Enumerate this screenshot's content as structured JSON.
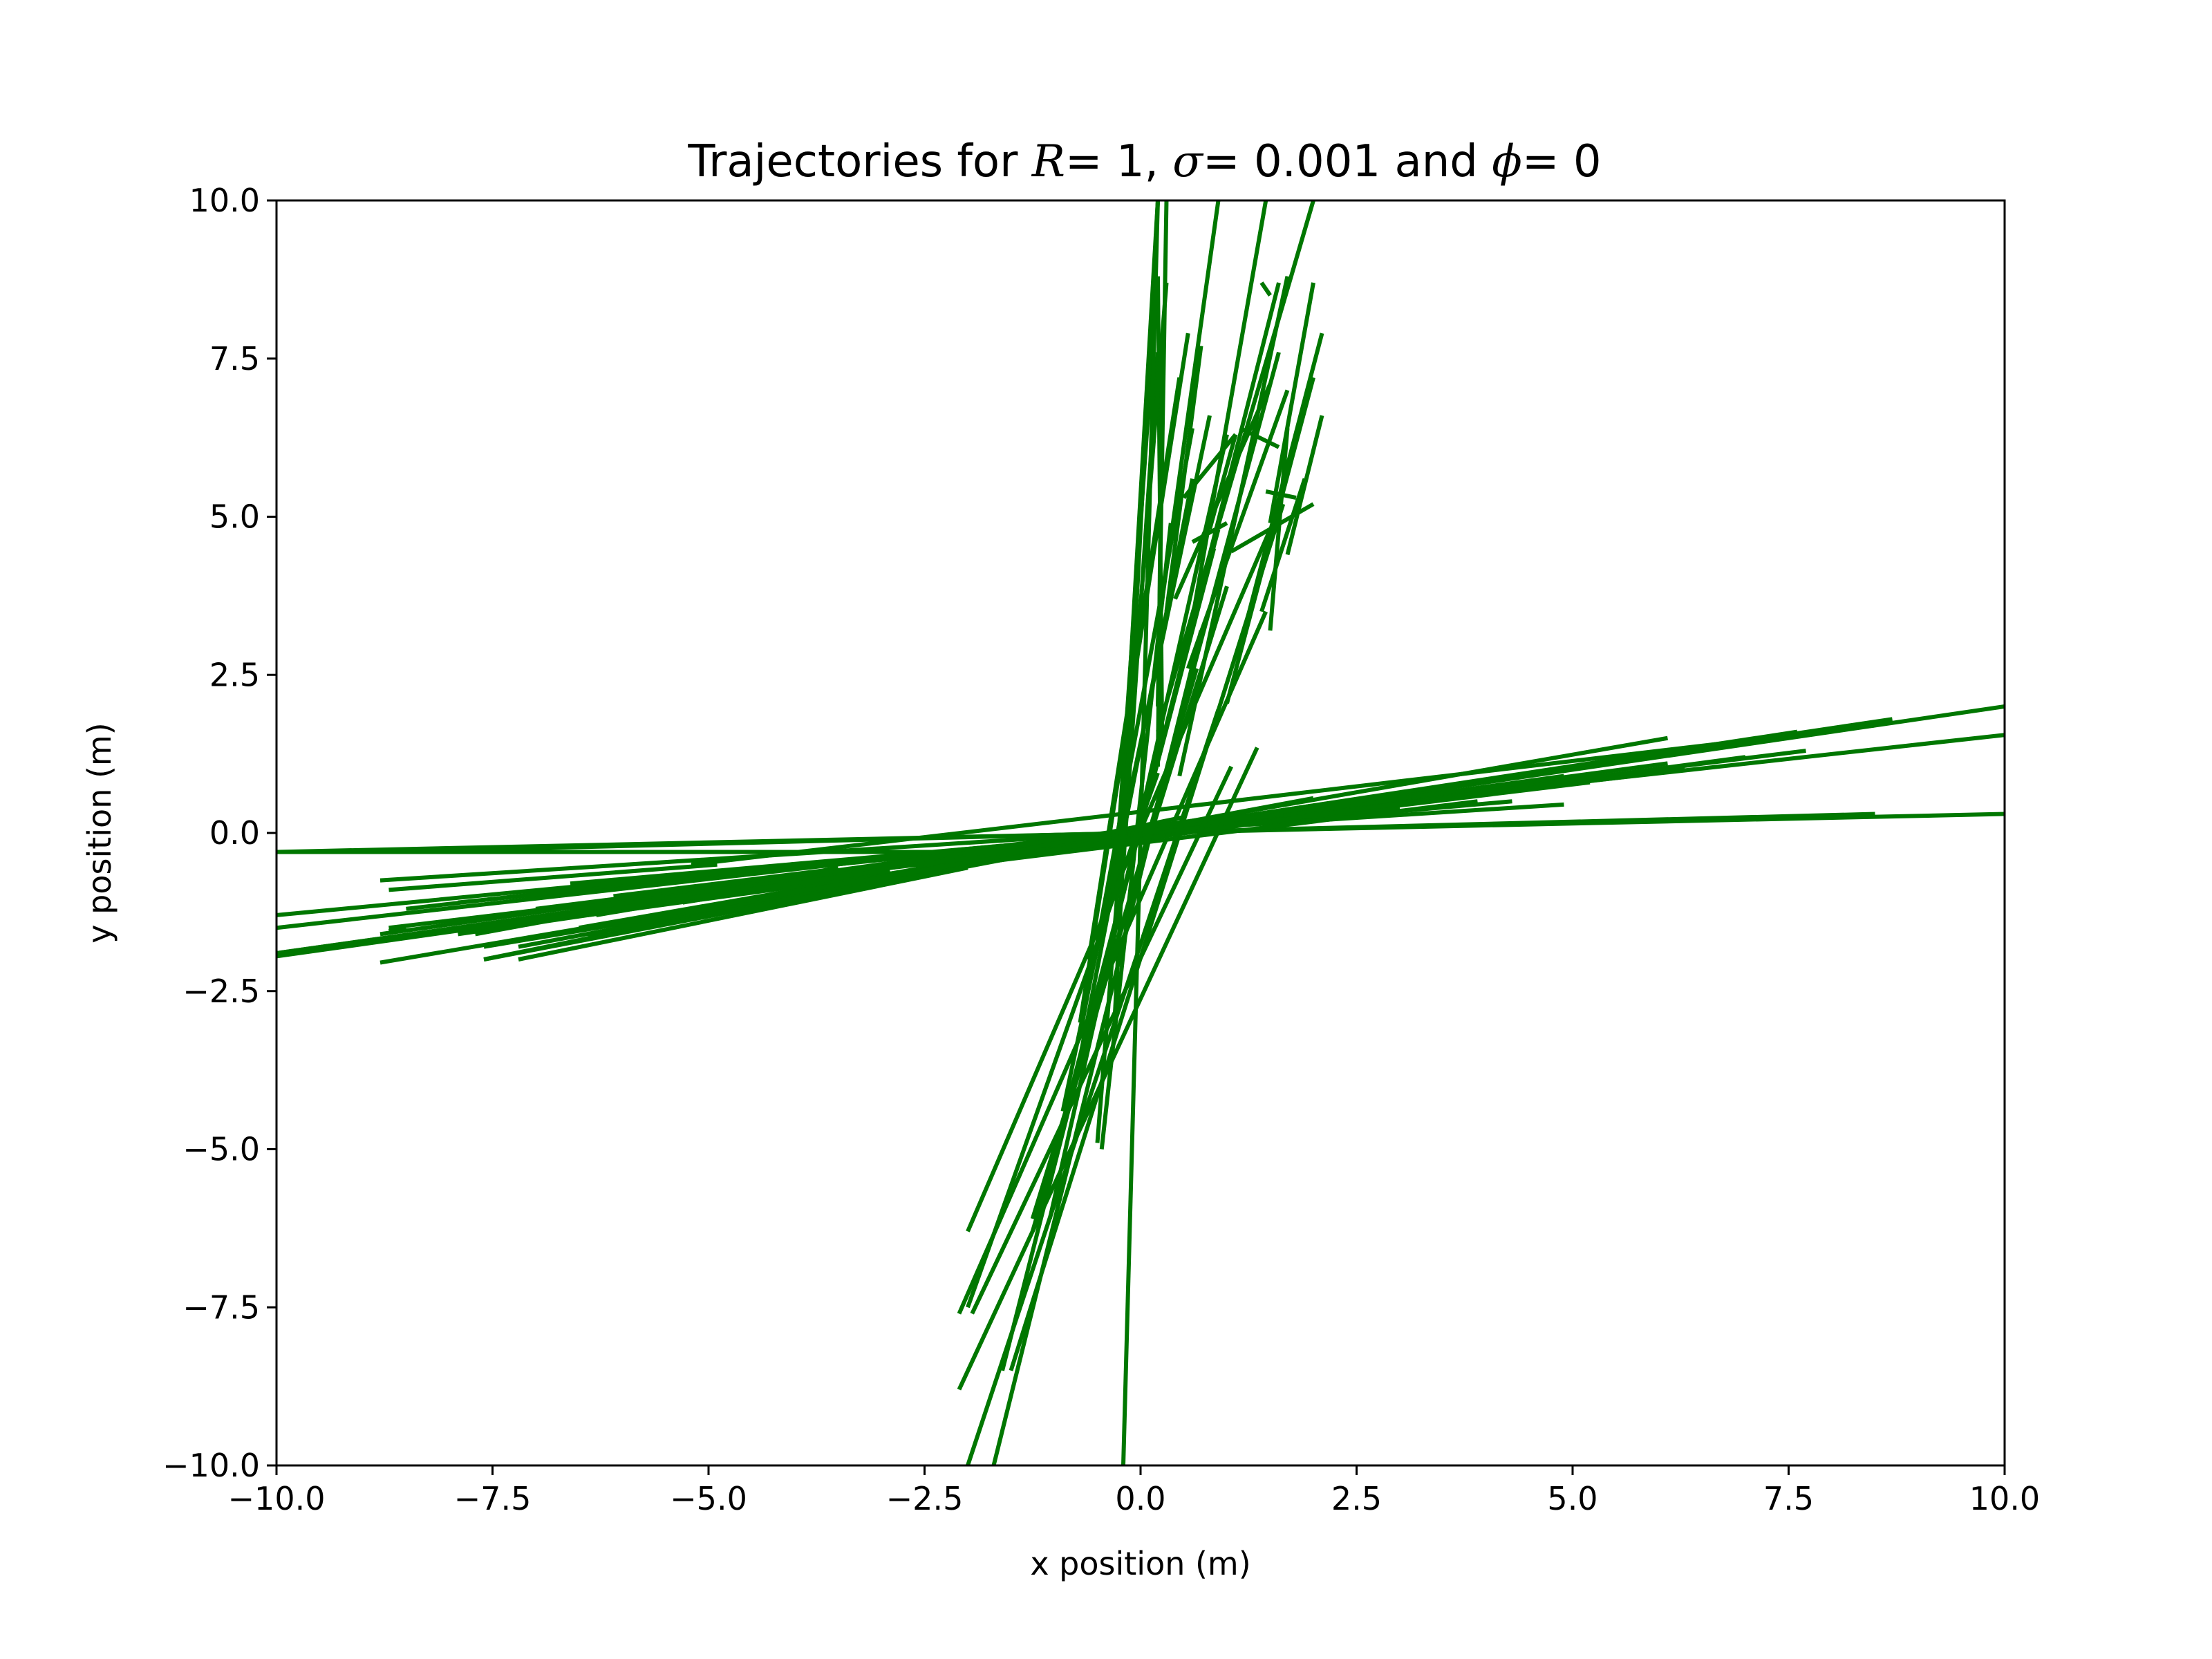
{
  "chart_data": {
    "type": "line",
    "title": {
      "prefix": "Trajectories for ",
      "r_symbol": "R",
      "r_value": "= 1, ",
      "sigma_symbol": "σ",
      "sigma_value": "= 0.001 and ",
      "phi_symbol": "ϕ",
      "phi_value": "= 0"
    },
    "xlabel": "x position (m)",
    "ylabel": "y position (m)",
    "xlim": [
      -10,
      10
    ],
    "ylim": [
      -10,
      10
    ],
    "xticks": [
      "−10.0",
      "−7.5",
      "−5.0",
      "−2.5",
      "0.0",
      "2.5",
      "5.0",
      "7.5",
      "10.0"
    ],
    "yticks": [
      "−10.0",
      "−7.5",
      "−5.0",
      "−2.5",
      "0.0",
      "2.5",
      "5.0",
      "7.5",
      "10.0"
    ],
    "xtick_values": [
      -10,
      -7.5,
      -5,
      -2.5,
      0,
      2.5,
      5,
      7.5,
      10
    ],
    "ytick_values": [
      -10,
      -7.5,
      -5,
      -2.5,
      0,
      2.5,
      5,
      7.5,
      10
    ],
    "grid": false,
    "line_color": "#007700",
    "segments": [
      [
        [
          -10.0,
          10.0
        ],
        [
          -0.3,
          0.3
        ]
      ],
      [
        [
          -8.7,
          8.5
        ],
        [
          -0.3,
          0.3
        ]
      ],
      [
        [
          -5.2,
          8.5
        ],
        [
          -0.5,
          1.7
        ]
      ],
      [
        [
          -3.2,
          10.0
        ],
        [
          -0.45,
          1.55
        ]
      ],
      [
        [
          -2.0,
          10.0
        ],
        [
          -0.4,
          2.0
        ]
      ],
      [
        [
          -1.35,
          8.7
        ],
        [
          -0.25,
          1.8
        ]
      ],
      [
        [
          -1.05,
          7.6
        ],
        [
          -0.2,
          1.6
        ]
      ],
      [
        [
          -3.5,
          7.7
        ],
        [
          -0.6,
          1.3
        ]
      ],
      [
        [
          -2.6,
          7.0
        ],
        [
          -0.55,
          1.2
        ]
      ],
      [
        [
          -3.75,
          6.1
        ],
        [
          -0.7,
          1.1
        ]
      ],
      [
        [
          -4.75,
          6.3
        ],
        [
          -0.8,
          1.0
        ]
      ],
      [
        [
          -4.45,
          5.2
        ],
        [
          -0.8,
          0.8
        ]
      ],
      [
        [
          -6.5,
          6.1
        ],
        [
          -1.5,
          1.5
        ]
      ],
      [
        [
          -5.3,
          4.9
        ],
        [
          -1.0,
          0.9
        ]
      ],
      [
        [
          -8.8,
          4.9
        ],
        [
          -0.75,
          0.45
        ]
      ],
      [
        [
          -6.6,
          4.3
        ],
        [
          -0.8,
          0.5
        ]
      ],
      [
        [
          -5.6,
          3.9
        ],
        [
          -1.1,
          0.5
        ]
      ],
      [
        [
          -7.9,
          3.0
        ],
        [
          -1.1,
          0.4
        ]
      ],
      [
        [
          -6.4,
          3.2
        ],
        [
          -1.3,
          0.5
        ]
      ],
      [
        [
          -10.0,
          3.0
        ],
        [
          -1.9,
          0.6
        ]
      ],
      [
        [
          -7.2,
          2.0
        ],
        [
          -1.8,
          0.55
        ]
      ],
      [
        [
          -10.0,
          1.65
        ],
        [
          -1.5,
          0.3
        ]
      ],
      [
        [
          -8.8,
          0.9
        ],
        [
          -1.6,
          0.25
        ]
      ],
      [
        [
          -7.6,
          0.5
        ],
        [
          -2.0,
          0.25
        ]
      ],
      [
        [
          -10.0,
          -2.0
        ],
        [
          -0.3,
          -0.3
        ]
      ],
      [
        [
          -10.0,
          -3.2
        ],
        [
          -1.9,
          -0.6
        ]
      ],
      [
        [
          -8.7,
          -1.35
        ],
        [
          -1.5,
          -0.3
        ]
      ],
      [
        [
          -7.6,
          -1.05
        ],
        [
          -1.8,
          -0.3
        ]
      ],
      [
        [
          -7.0,
          -2.6
        ],
        [
          -1.2,
          -0.45
        ]
      ],
      [
        [
          -7.7,
          -3.5
        ],
        [
          -1.6,
          -0.55
        ]
      ],
      [
        [
          -8.5,
          -5.3
        ],
        [
          -1.2,
          -0.7
        ]
      ],
      [
        [
          -6.3,
          -4.8
        ],
        [
          -1.3,
          -0.95
        ]
      ],
      [
        [
          -6.1,
          -3.7
        ],
        [
          -1.0,
          -0.6
        ]
      ],
      [
        [
          -5.3,
          -4.4
        ],
        [
          -1.1,
          -0.9
        ]
      ],
      [
        [
          -4.9,
          -5.3
        ],
        [
          -0.9,
          -0.95
        ]
      ],
      [
        [
          -6.1,
          -6.4
        ],
        [
          -1.6,
          -1.6
        ]
      ],
      [
        [
          -8.5,
          -8.7
        ],
        [
          -1.5,
          -1.55
        ]
      ],
      [
        [
          -10.0,
          -10.0
        ],
        [
          -0.3,
          -0.3
        ]
      ],
      [
        [
          -4.3,
          -4.9
        ],
        [
          -1.0,
          -1.15
        ]
      ],
      [
        [
          -3.9,
          -5.6
        ],
        [
          -1.0,
          -1.45
        ]
      ],
      [
        [
          -4.35,
          -6.6
        ],
        [
          -0.8,
          -1.2
        ]
      ],
      [
        [
          -3.2,
          -6.4
        ],
        [
          -0.6,
          -1.2
        ]
      ],
      [
        [
          -4.9,
          -8.7
        ],
        [
          -0.5,
          -0.9
        ]
      ],
      [
        [
          -2.9,
          -7.9
        ],
        [
          -0.6,
          -1.6
        ]
      ],
      [
        [
          -3.0,
          -10.0
        ],
        [
          -0.6,
          -1.95
        ]
      ],
      [
        [
          -2.0,
          -7.2
        ],
        [
          -0.55,
          -2.0
        ]
      ],
      [
        [
          -1.6,
          -10.0
        ],
        [
          -0.2,
          -1.3
        ]
      ],
      [
        [
          -1.05,
          -8.8
        ],
        [
          -0.25,
          -2.05
        ]
      ],
      [
        [
          -0.55,
          -7.6
        ],
        [
          -0.15,
          -2.0
        ]
      ],
      [
        [
          0.2,
          2.0
        ],
        [
          1.6,
          10.0
        ]
      ],
      [
        [
          0.2,
          1.6
        ],
        [
          0.5,
          7.6
        ]
      ],
      [
        [
          0.45,
          1.7
        ],
        [
          0.9,
          8.8
        ]
      ],
      [
        [
          1.0,
          2.0
        ],
        [
          2.05,
          7.2
        ]
      ],
      [
        [
          0.55,
          1.45
        ],
        [
          3.0,
          10.0
        ]
      ],
      [
        [
          1.2,
          2.1
        ],
        [
          3.2,
          7.9
        ]
      ],
      [
        [
          1.5,
          1.7
        ],
        [
          3.2,
          6.4
        ]
      ],
      [
        [
          1.4,
          1.9
        ],
        [
          3.5,
          5.6
        ]
      ],
      [
        [
          1.5,
          2.0
        ],
        [
          4.9,
          8.7
        ]
      ],
      [
        [
          1.7,
          2.1
        ],
        [
          4.4,
          6.6
        ]
      ],
      [
        [
          1.0,
          0.6
        ],
        [
          4.9,
          4.6
        ]
      ],
      [
        [
          1.8,
          1.45
        ],
        [
          5.3,
          5.4
        ]
      ],
      [
        [
          1.6,
          1.15
        ],
        [
          6.1,
          6.4
        ]
      ],
      [
        [
          1.5,
          1.4
        ],
        [
          8.5,
          8.7
        ]
      ],
      [
        [
          0.3,
          0.3
        ],
        [
          10.0,
          10.0
        ]
      ],
      [
        [
          1.1,
          0.8
        ],
        [
          6.3,
          4.8
        ]
      ],
      [
        [
          2.0,
          1.05
        ],
        [
          5.2,
          4.45
        ]
      ],
      [
        [
          1.1,
          0.5
        ],
        [
          6.3,
          5.3
        ]
      ],
      [
        [
          1.5,
          0.4
        ],
        [
          7.1,
          3.7
        ]
      ],
      [
        [
          0.7,
          0.3
        ],
        [
          7.7,
          3.5
        ]
      ],
      [
        [
          1.7,
          0.55
        ],
        [
          7.0,
          2.6
        ]
      ],
      [
        [
          0.9,
          0.2
        ],
        [
          10.0,
          3.2
        ]
      ],
      [
        [
          0.3,
          0.2
        ],
        [
          10.0,
          2.0
        ]
      ],
      [
        [
          0.2,
          0.25
        ],
        [
          8.8,
          1.4
        ]
      ],
      [
        [
          0.25,
          0.2
        ],
        [
          7.6,
          1.05
        ]
      ],
      [
        [
          0.2,
          -0.3
        ],
        [
          10.0,
          -1.65
        ]
      ],
      [
        [
          0.2,
          -0.2
        ],
        [
          7.6,
          -0.5
        ]
      ],
      [
        [
          0.2,
          -0.3
        ],
        [
          8.8,
          -0.9
        ]
      ],
      [
        [
          0.45,
          -0.6
        ],
        [
          7.2,
          -2.0
        ]
      ],
      [
        [
          0.2,
          -0.3
        ],
        [
          10.0,
          -2.95
        ]
      ],
      [
        [
          0.55,
          -0.7
        ],
        [
          7.9,
          -3.0
        ]
      ],
      [
        [
          0.6,
          -0.7
        ],
        [
          6.4,
          -3.2
        ]
      ],
      [
        [
          0.3,
          -0.5
        ],
        [
          8.7,
          -4.9
        ]
      ],
      [
        [
          0.8,
          -0.9
        ],
        [
          6.6,
          -4.4
        ]
      ],
      [
        [
          0.6,
          -0.75
        ],
        [
          5.6,
          -3.9
        ]
      ],
      [
        [
          0.35,
          -0.45
        ],
        [
          4.9,
          -5.0
        ]
      ],
      [
        [
          0.2,
          -0.2
        ],
        [
          10.0,
          -10.0
        ]
      ],
      [
        [
          1.6,
          -1.6
        ],
        [
          8.7,
          -8.5
        ]
      ],
      [
        [
          1.0,
          -1.05
        ],
        [
          6.3,
          -6.1
        ]
      ],
      [
        [
          0.9,
          -0.85
        ],
        [
          4.8,
          -4.3
        ]
      ],
      [
        [
          0.85,
          -1.0
        ],
        [
          4.5,
          -5.1
        ]
      ],
      [
        [
          1.5,
          -2.0
        ],
        [
          4.8,
          -6.3
        ]
      ],
      [
        [
          1.0,
          -1.25
        ],
        [
          3.9,
          -6.1
        ]
      ],
      [
        [
          1.45,
          -2.1
        ],
        [
          3.5,
          -7.6
        ]
      ],
      [
        [
          1.65,
          -1.5
        ],
        [
          5.2,
          -8.5
        ]
      ],
      [
        [
          0.65,
          -1.25
        ],
        [
          2.6,
          -6.3
        ]
      ],
      [
        [
          0.7,
          -1.7
        ],
        [
          3.2,
          -10.0
        ]
      ],
      [
        [
          0.9,
          -2.0
        ],
        [
          1.95,
          -10.0
        ]
      ],
      [
        [
          1.35,
          -2.1
        ],
        [
          1.35,
          -8.8
        ]
      ],
      [
        [
          1.05,
          -1.95
        ],
        [
          1.05,
          -7.6
        ]
      ],
      [
        [
          0.2,
          -2.0
        ],
        [
          0.95,
          -7.5
        ]
      ],
      [
        [
          -1.0,
          -2.0
        ],
        [
          -0.3,
          -0.3
        ]
      ]
    ]
  }
}
